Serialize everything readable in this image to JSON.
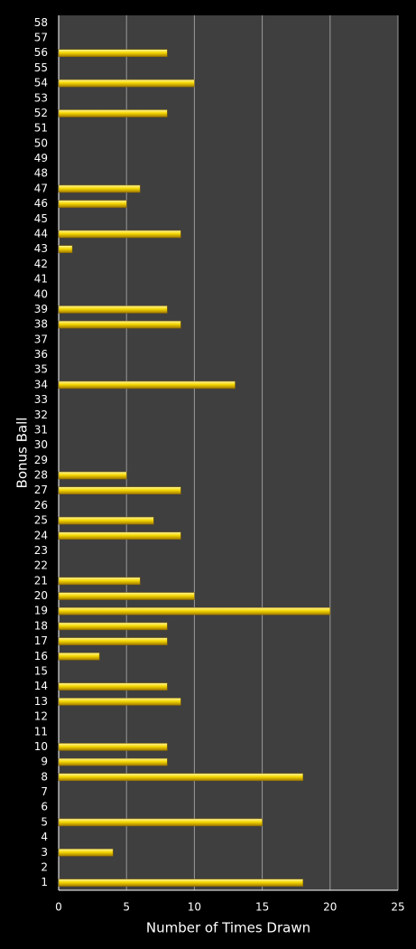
{
  "chart_data": {
    "type": "barh",
    "x_label": "Number of Times Drawn",
    "y_label": "Bonus Ball",
    "categories": [
      "1",
      "2",
      "3",
      "4",
      "5",
      "6",
      "7",
      "8",
      "9",
      "10",
      "11",
      "12",
      "13",
      "14",
      "15",
      "16",
      "17",
      "18",
      "19",
      "20",
      "21",
      "22",
      "23",
      "24",
      "25",
      "26",
      "27",
      "28",
      "29",
      "30",
      "31",
      "32",
      "33",
      "34",
      "35",
      "36",
      "37",
      "38",
      "39",
      "40",
      "41",
      "42",
      "43",
      "44",
      "45",
      "46",
      "47",
      "48",
      "49",
      "50",
      "51",
      "52",
      "53",
      "54",
      "55",
      "56",
      "57",
      "58"
    ],
    "values": [
      18,
      0,
      4,
      0,
      15,
      0,
      0,
      18,
      8,
      8,
      0,
      0,
      9,
      8,
      0,
      3,
      8,
      8,
      20,
      10,
      6,
      0,
      0,
      9,
      7,
      0,
      9,
      5,
      0,
      0,
      0,
      0,
      0,
      13,
      0,
      0,
      0,
      9,
      8,
      0,
      0,
      0,
      1,
      9,
      0,
      5,
      6,
      0,
      0,
      0,
      0,
      8,
      0,
      10,
      0,
      8,
      0,
      0
    ],
    "color": "#f2d000",
    "xlim": [
      0,
      25
    ],
    "xticks": [
      0,
      5,
      10,
      15,
      20,
      25
    ],
    "grid": true
  }
}
